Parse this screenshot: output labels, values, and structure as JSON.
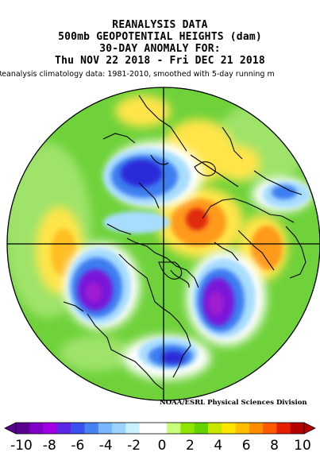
{
  "title": {
    "line1": "REANALYSIS DATA",
    "line2": "500mb GEOPOTENTIAL HEIGHTS (dam)",
    "line3": "30-DAY ANOMALY FOR:",
    "line4": "Thu NOV 22 2018 - Fri DEC 21 2018"
  },
  "subtitle": "Reanalysis climatology data: 1981-2010, smoothed with 5-day running m",
  "credit": "NOAA/ESRL Physical Sciences Division",
  "colorbar": {
    "labels": [
      "-10",
      "-8",
      "-6",
      "-4",
      "-2",
      "0",
      "2",
      "4",
      "6",
      "8",
      "10"
    ],
    "colors": [
      "#5a0090",
      "#8000c8",
      "#a000e6",
      "#5a28e6",
      "#3c50f0",
      "#4682f0",
      "#78b4ff",
      "#9cd2ff",
      "#c8f0ff",
      "#ffffff",
      "#ffffff",
      "#c8ff7a",
      "#8ee600",
      "#64d200",
      "#c8e600",
      "#ffe600",
      "#ffbe00",
      "#ff8c00",
      "#ff5a00",
      "#e61e00",
      "#b40000"
    ]
  },
  "map_colors": {
    "base_green": "#6fd23a",
    "light_green": "#9fe36a",
    "yellow": "#ffe54a",
    "orange": "#ff9a1a",
    "red": "#e02a10",
    "light_blue": "#a8ddff",
    "mid_blue": "#3c7df0",
    "dark_blue": "#2a2ad8",
    "violet": "#7a12d8",
    "purple": "#a01ad0",
    "white": "#ffffff"
  }
}
